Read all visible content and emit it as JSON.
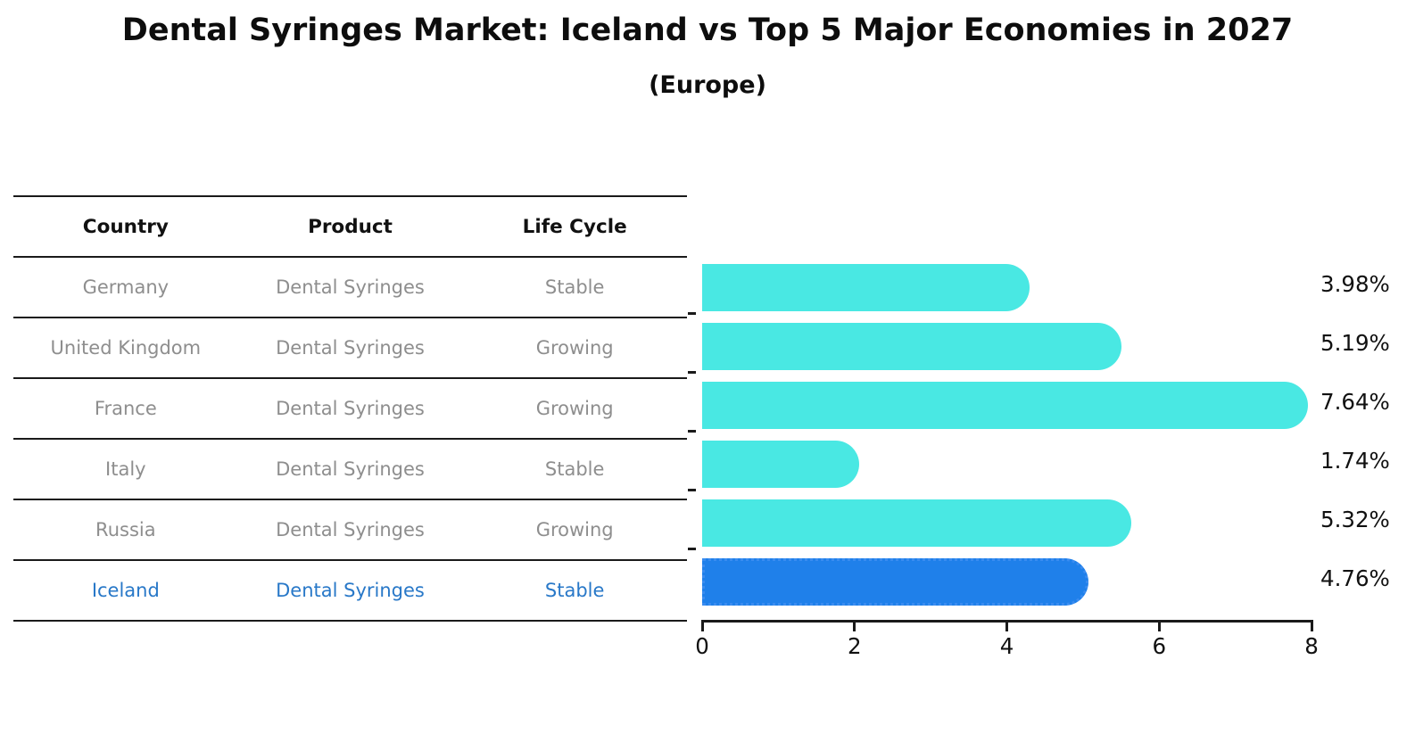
{
  "title": "Dental Syringes Market: Iceland vs Top 5 Major Economies in 2027",
  "subtitle": "(Europe)",
  "table": {
    "headers": [
      "Country",
      "Product",
      "Life Cycle"
    ],
    "rows": [
      {
        "country": "Germany",
        "product": "Dental Syringes",
        "life_cycle": "Stable",
        "highlight": false
      },
      {
        "country": "United Kingdom",
        "product": "Dental Syringes",
        "life_cycle": "Growing",
        "highlight": false
      },
      {
        "country": "France",
        "product": "Dental Syringes",
        "life_cycle": "Growing",
        "highlight": false
      },
      {
        "country": "Italy",
        "product": "Dental Syringes",
        "life_cycle": "Stable",
        "highlight": false
      },
      {
        "country": "Russia",
        "product": "Dental Syringes",
        "life_cycle": "Growing",
        "highlight": false
      },
      {
        "country": "Iceland",
        "product": "Dental Syringes",
        "life_cycle": "Stable",
        "highlight": true
      }
    ]
  },
  "chart_data": {
    "type": "bar",
    "orientation": "horizontal",
    "title": "Dental Syringes Market: Iceland vs Top 5 Major Economies in 2027 (Europe)",
    "categories": [
      "Germany",
      "United Kingdom",
      "France",
      "Italy",
      "Russia",
      "Iceland"
    ],
    "values": [
      3.98,
      5.19,
      7.64,
      1.74,
      5.32,
      4.76
    ],
    "value_labels": [
      "3.98%",
      "5.19%",
      "7.64%",
      "1.74%",
      "5.32%",
      "4.76%"
    ],
    "xlabel": "",
    "ylabel": "",
    "xlim": [
      0,
      8
    ],
    "x_ticks": [
      0,
      2,
      4,
      6,
      8
    ],
    "grid": false,
    "legend": false,
    "bar_color": "#49E8E3",
    "highlight_color": "#1F80EA",
    "highlight_index": 5
  },
  "colors": {
    "bar_cyan": "#49E8E3",
    "bar_blue": "#1F80EA",
    "highlight_text": "#2878C8",
    "table_text": "#8E8E8E",
    "heading_text": "#111111",
    "axis_line": "#1A1A1A"
  }
}
